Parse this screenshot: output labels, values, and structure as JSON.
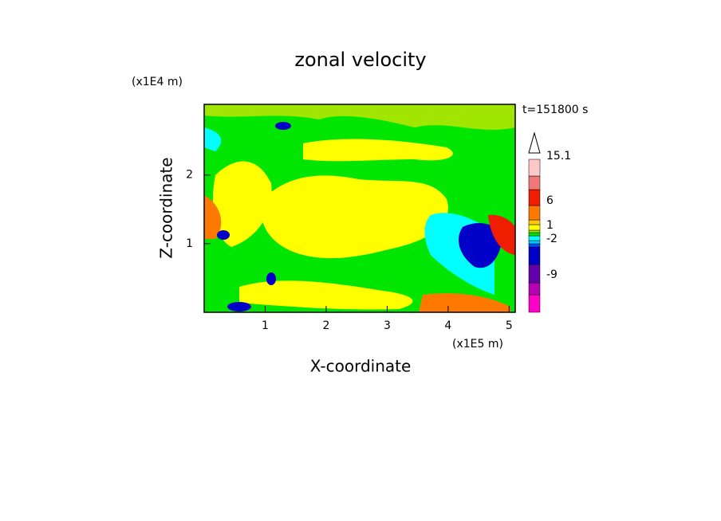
{
  "chart_data": {
    "type": "contour",
    "title": "zonal velocity",
    "y_unit": "(x1E4 m)",
    "x_unit": "(x1E5 m)",
    "time_label": "t=151800 s",
    "xlabel": "X-coordinate",
    "ylabel": "Z-coordinate",
    "xlim": [
      0,
      5.1
    ],
    "xticks": [
      1,
      2,
      3,
      4,
      5
    ],
    "ylim": [
      0,
      3.03
    ],
    "yticks": [
      1,
      2
    ],
    "colorbar_labels": [
      15.1,
      6,
      1,
      -2,
      -9
    ],
    "colorbar_colors": [
      "#ff00c8",
      "#b400b4",
      "#6400aa",
      "#0000c8",
      "#0050ff",
      "#00c8ff",
      "#00ffff",
      "#00e600",
      "#a0e600",
      "#ffff00",
      "#ffc800",
      "#ff7800",
      "#f01e00",
      "#f07878",
      "#ffc8c8"
    ]
  }
}
